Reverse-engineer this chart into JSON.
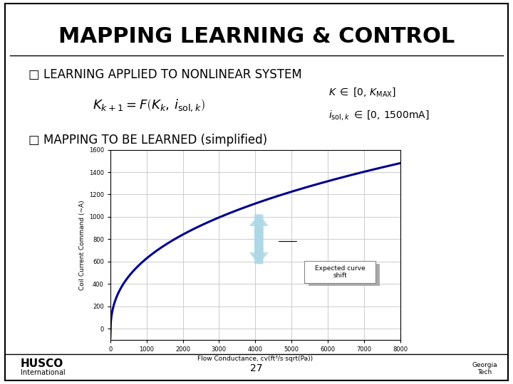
{
  "title": "MAPPING LEARNING & CONTROL",
  "bullet1": "LEARNING APPLIED TO NONLINEAR SYSTEM",
  "bullet2": "MAPPING TO BE LEARNED (simplified)",
  "xlabel": "Flow Conductance, cv(ft³/s·sqrt(Pa))",
  "ylabel": "Coil Current Command (~A)",
  "annotation": "Expected curve\nshift",
  "page_number": "27",
  "bg_color": "#ffffff",
  "title_color": "#000000",
  "curve_color": "#00008B",
  "arrow_fill": "#ADD8E6",
  "grid_color": "#cccccc",
  "xmin": 0,
  "xmax": 8000,
  "ymin": -100,
  "ymax": 1600,
  "xticks": [
    0,
    1000,
    2000,
    3000,
    4000,
    5000,
    6000,
    7000,
    8000
  ],
  "yticks": [
    0,
    200,
    400,
    600,
    800,
    1000,
    1200,
    1400,
    1600
  ],
  "husco_bold": "HUSCO",
  "husco_sub": "International",
  "georgia_tech": "Georgia\nTech"
}
